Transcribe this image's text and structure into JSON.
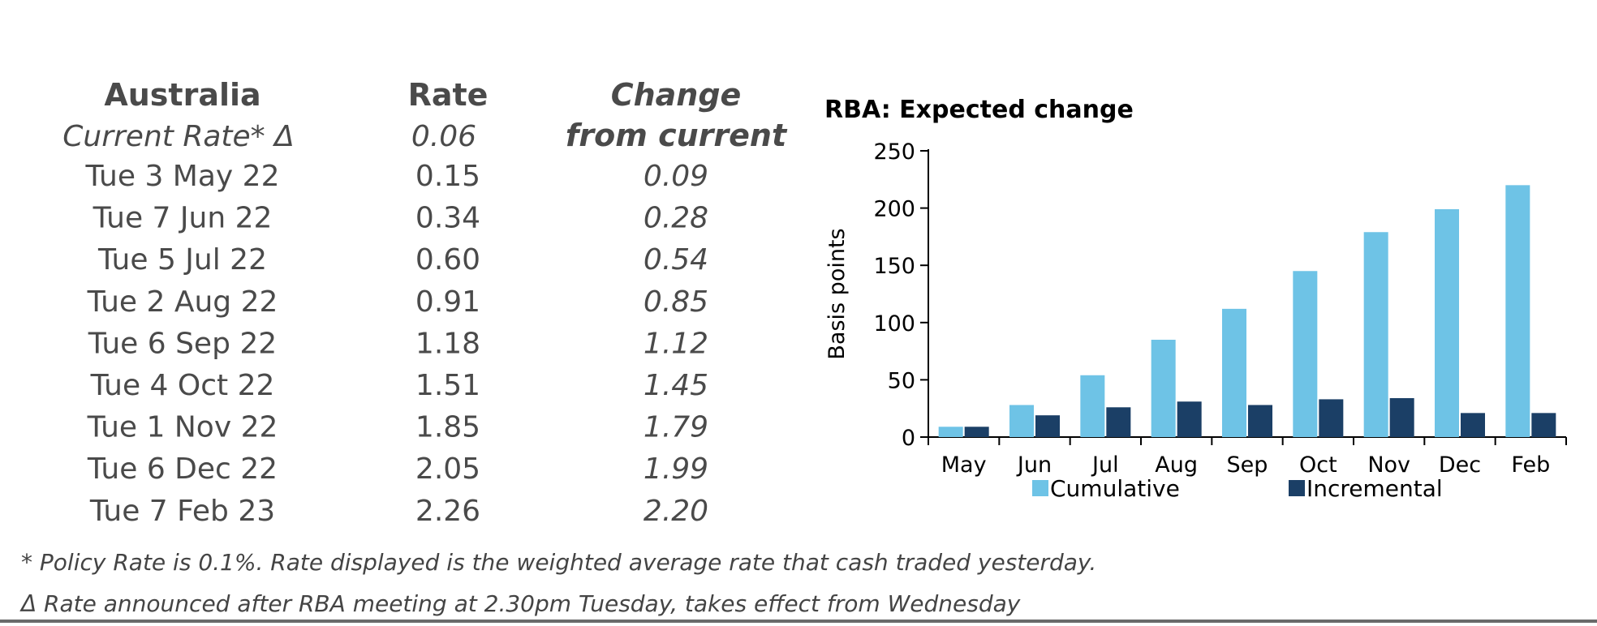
{
  "table": {
    "headers": {
      "country": "Australia",
      "rate": "Rate",
      "change_line1": "Change",
      "change_line2": "from current"
    },
    "current": {
      "label": "Current Rate* Δ",
      "rate": "0.06"
    },
    "rows": [
      {
        "date": "Tue 3 May 22",
        "rate": "0.15",
        "change": "0.09"
      },
      {
        "date": "Tue 7 Jun 22",
        "rate": "0.34",
        "change": "0.28"
      },
      {
        "date": "Tue 5 Jul 22",
        "rate": "0.60",
        "change": "0.54"
      },
      {
        "date": "Tue 2 Aug 22",
        "rate": "0.91",
        "change": "0.85"
      },
      {
        "date": "Tue 6 Sep 22",
        "rate": "1.18",
        "change": "1.12"
      },
      {
        "date": "Tue 4 Oct 22",
        "rate": "1.51",
        "change": "1.45"
      },
      {
        "date": "Tue 1 Nov 22",
        "rate": "1.85",
        "change": "1.79"
      },
      {
        "date": "Tue 6 Dec 22",
        "rate": "2.05",
        "change": "1.99"
      },
      {
        "date": "Tue 7 Feb 23",
        "rate": "2.26",
        "change": "2.20"
      }
    ]
  },
  "chart_data": {
    "type": "bar",
    "title": "RBA: Expected change",
    "xlabel": "",
    "ylabel": "Basis points",
    "ylim": [
      0,
      250
    ],
    "yticks": [
      0,
      50,
      100,
      150,
      200,
      250
    ],
    "grid": false,
    "legend": "bottom",
    "categories": [
      "May",
      "Jun",
      "Jul",
      "Aug",
      "Sep",
      "Oct",
      "Nov",
      "Dec",
      "Feb"
    ],
    "series": [
      {
        "name": "Cumulative",
        "color": "#6ec3e6",
        "values": [
          9,
          28,
          54,
          85,
          112,
          145,
          179,
          199,
          220
        ]
      },
      {
        "name": "Incremental",
        "color": "#1b3f66",
        "values": [
          9,
          19,
          26,
          31,
          28,
          33,
          34,
          21,
          21
        ]
      }
    ]
  },
  "footnotes": [
    "* Policy Rate is 0.1%.  Rate displayed is the weighted average rate that cash traded yesterday.",
    "Δ Rate announced after RBA meeting at 2.30pm Tuesday, takes effect from Wednesday"
  ]
}
